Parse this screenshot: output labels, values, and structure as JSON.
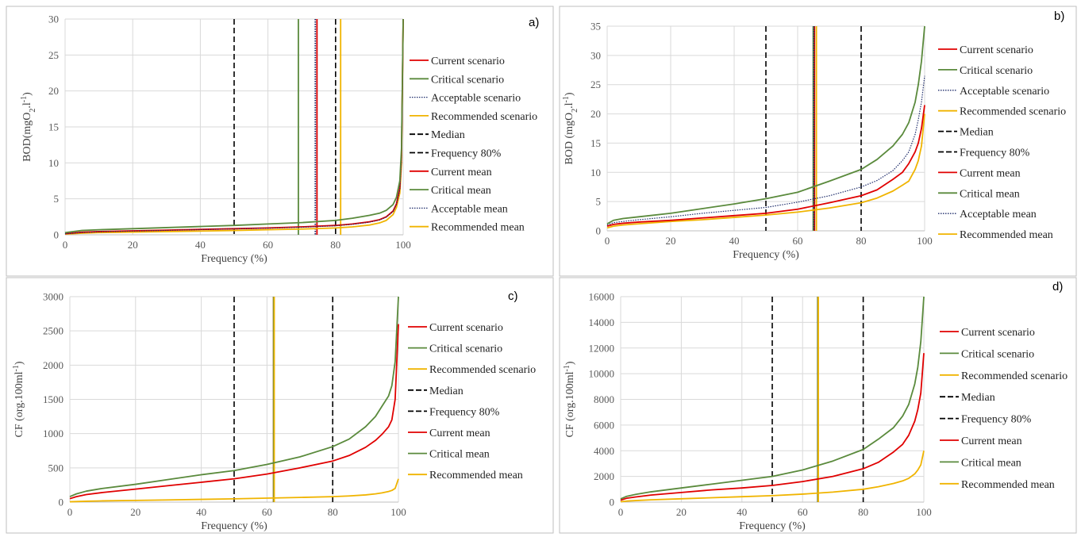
{
  "colors": {
    "current": "#e00000",
    "critical": "#5a8a3c",
    "acceptable": "#1f2d6b",
    "recommended": "#f0b400",
    "reference": "#000000",
    "grid": "#d9d9d9",
    "panel_border": "#bfbfbf"
  },
  "chart_data": [
    {
      "id": "a",
      "panel_label": "a)",
      "type": "line",
      "ylabel_main": "BOD(mgO",
      "ylabel_sub": "2",
      "ylabel_mid": ".l",
      "ylabel_sup": "-1",
      "ylabel_end": ")",
      "xlabel": "Frequency (%)",
      "xlim": [
        0,
        100
      ],
      "ylim": [
        0,
        30
      ],
      "xticks": [
        "0",
        "20",
        "40",
        "60",
        "80",
        "100"
      ],
      "yticks": [
        "0",
        "5",
        "10",
        "15",
        "20",
        "25",
        "30"
      ],
      "x": [
        0,
        5,
        10,
        20,
        30,
        40,
        50,
        60,
        70,
        80,
        85,
        90,
        93,
        95,
        97,
        98,
        99,
        99.5,
        100
      ],
      "series": [
        {
          "name": "Current scenario",
          "kind": "current",
          "style": "solid",
          "values": [
            0.15,
            0.35,
            0.45,
            0.55,
            0.65,
            0.75,
            0.85,
            0.95,
            1.1,
            1.3,
            1.5,
            1.8,
            2.1,
            2.5,
            3.3,
            4.3,
            6.5,
            11,
            30
          ]
        },
        {
          "name": "Critical scenario",
          "kind": "critical",
          "style": "solid",
          "values": [
            0.3,
            0.6,
            0.7,
            0.85,
            1.0,
            1.15,
            1.3,
            1.5,
            1.7,
            2.0,
            2.3,
            2.7,
            3.0,
            3.4,
            4.2,
            5.2,
            7.5,
            12,
            30
          ]
        },
        {
          "name": "Acceptable scenario",
          "kind": "acceptable",
          "style": "dotted",
          "values": [
            0.15,
            0.32,
            0.42,
            0.52,
            0.62,
            0.72,
            0.82,
            0.92,
            1.05,
            1.25,
            1.45,
            1.75,
            2.05,
            2.45,
            3.2,
            4.2,
            6.3,
            10.5,
            30
          ]
        },
        {
          "name": "Recommended scenario",
          "kind": "recommended",
          "style": "solid",
          "values": [
            0.1,
            0.22,
            0.3,
            0.38,
            0.45,
            0.52,
            0.6,
            0.7,
            0.8,
            0.95,
            1.1,
            1.35,
            1.65,
            2.0,
            2.8,
            3.8,
            5.8,
            10,
            30
          ]
        },
        {
          "name": "Median",
          "kind": "reference",
          "style": "dashed",
          "vline": 50
        },
        {
          "name": "Frequency 80%",
          "kind": "reference",
          "style": "dashed",
          "vline": 80
        },
        {
          "name": "Current mean",
          "kind": "current",
          "style": "solid",
          "vline": 74.5
        },
        {
          "name": "Critical mean",
          "kind": "critical",
          "style": "solid",
          "vline": 69
        },
        {
          "name": "Acceptable mean",
          "kind": "acceptable",
          "style": "dotted",
          "vline": 74
        },
        {
          "name": "Recommended mean",
          "kind": "recommended",
          "style": "solid",
          "vline": 81.5
        }
      ]
    },
    {
      "id": "b",
      "panel_label": "b)",
      "type": "line",
      "ylabel_main": "BOD (mgO",
      "ylabel_sub": "2",
      "ylabel_mid": ".l",
      "ylabel_sup": "-1",
      "ylabel_end": ")",
      "xlabel": "Frequency (%)",
      "xlim": [
        0,
        100
      ],
      "ylim": [
        0,
        35
      ],
      "xticks": [
        "0",
        "20",
        "40",
        "60",
        "80",
        "100"
      ],
      "yticks": [
        "0",
        "5",
        "10",
        "15",
        "20",
        "25",
        "30",
        "35"
      ],
      "x": [
        0,
        2,
        5,
        10,
        20,
        30,
        40,
        50,
        60,
        70,
        80,
        85,
        90,
        93,
        95,
        97,
        98,
        99,
        100
      ],
      "series": [
        {
          "name": "Current scenario",
          "kind": "current",
          "style": "solid",
          "values": [
            0.8,
            1.1,
            1.3,
            1.5,
            1.8,
            2.2,
            2.6,
            3.0,
            3.7,
            4.8,
            6.0,
            7.0,
            8.8,
            10.0,
            11.5,
            13.5,
            15.0,
            17.5,
            21.5
          ]
        },
        {
          "name": "Critical scenario",
          "kind": "critical",
          "style": "solid",
          "values": [
            1.2,
            1.8,
            2.1,
            2.4,
            3.0,
            3.8,
            4.6,
            5.5,
            6.6,
            8.5,
            10.5,
            12.2,
            14.5,
            16.5,
            18.5,
            22.0,
            25.0,
            29.0,
            35.0
          ]
        },
        {
          "name": "Acceptable scenario",
          "kind": "acceptable",
          "style": "dotted",
          "values": [
            1.0,
            1.4,
            1.6,
            1.9,
            2.4,
            3.0,
            3.5,
            4.0,
            4.9,
            6.0,
            7.5,
            8.6,
            10.3,
            12.0,
            13.5,
            16.5,
            19.0,
            22.0,
            26.5
          ]
        },
        {
          "name": "Recommended scenario",
          "kind": "recommended",
          "style": "solid",
          "values": [
            0.5,
            0.8,
            1.0,
            1.2,
            1.6,
            1.9,
            2.3,
            2.7,
            3.2,
            3.9,
            4.8,
            5.6,
            6.8,
            7.8,
            8.5,
            10.5,
            12.0,
            14.5,
            20.0
          ]
        },
        {
          "name": "Median",
          "kind": "reference",
          "style": "dashed",
          "vline": 50
        },
        {
          "name": "Frequency 80%",
          "kind": "reference",
          "style": "dashed",
          "vline": 80
        },
        {
          "name": "Current mean",
          "kind": "current",
          "style": "solid",
          "vline": 65.3
        },
        {
          "name": "Critical mean",
          "kind": "critical",
          "style": "solid",
          "vline": 64.9
        },
        {
          "name": "Acceptable mean",
          "kind": "acceptable",
          "style": "dotted",
          "vline": 65.1
        },
        {
          "name": "Recommended mean",
          "kind": "recommended",
          "style": "solid",
          "vline": 65.9
        }
      ]
    },
    {
      "id": "c",
      "panel_label": "c)",
      "type": "line",
      "ylabel_main": "CF (org.100ml",
      "ylabel_sub": "",
      "ylabel_mid": "",
      "ylabel_sup": "-1",
      "ylabel_end": ")",
      "xlabel": "Frequency (%)",
      "xlim": [
        0,
        100
      ],
      "ylim": [
        0,
        3000
      ],
      "xticks": [
        "0",
        "20",
        "40",
        "60",
        "80",
        "100"
      ],
      "yticks": [
        "0",
        "500",
        "1000",
        "1500",
        "2000",
        "2500",
        "3000"
      ],
      "x": [
        0,
        2,
        5,
        10,
        20,
        30,
        40,
        50,
        60,
        70,
        80,
        85,
        90,
        93,
        95,
        97,
        98,
        99,
        100
      ],
      "series": [
        {
          "name": "Current scenario",
          "kind": "current",
          "style": "solid",
          "values": [
            50,
            80,
            110,
            140,
            190,
            240,
            290,
            340,
            410,
            500,
            600,
            680,
            800,
            900,
            990,
            1100,
            1200,
            1500,
            2600
          ]
        },
        {
          "name": "Critical scenario",
          "kind": "critical",
          "style": "solid",
          "values": [
            80,
            120,
            160,
            200,
            260,
            330,
            400,
            460,
            550,
            660,
            810,
            920,
            1100,
            1250,
            1400,
            1550,
            1700,
            2050,
            3000
          ]
        },
        {
          "name": "Recommended scenario",
          "kind": "recommended",
          "style": "solid",
          "values": [
            5,
            8,
            12,
            18,
            25,
            32,
            40,
            48,
            58,
            68,
            80,
            90,
            105,
            120,
            135,
            155,
            170,
            200,
            340
          ]
        },
        {
          "name": "Median",
          "kind": "reference",
          "style": "dashed",
          "vline": 50
        },
        {
          "name": "Frequency 80%",
          "kind": "reference",
          "style": "dashed",
          "vline": 80
        },
        {
          "name": "Current mean",
          "kind": "current",
          "style": "solid",
          "vline": 62
        },
        {
          "name": "Critical mean",
          "kind": "critical",
          "style": "solid",
          "vline": 62
        },
        {
          "name": "Recommended mean",
          "kind": "recommended",
          "style": "solid",
          "vline": 62.2
        }
      ]
    },
    {
      "id": "d",
      "panel_label": "d)",
      "type": "line",
      "ylabel_main": "CF (org.100ml",
      "ylabel_sub": "",
      "ylabel_mid": "",
      "ylabel_sup": "-1",
      "ylabel_end": ")",
      "xlabel": "Frequency (%)",
      "xlim": [
        0,
        100
      ],
      "ylim": [
        0,
        16000
      ],
      "xticks": [
        "0",
        "20",
        "40",
        "60",
        "80",
        "100"
      ],
      "yticks": [
        "0",
        "2000",
        "4000",
        "6000",
        "8000",
        "10000",
        "12000",
        "14000",
        "16000"
      ],
      "x": [
        0,
        2,
        5,
        10,
        20,
        30,
        40,
        50,
        60,
        70,
        80,
        85,
        90,
        93,
        95,
        97,
        98,
        99,
        100
      ],
      "series": [
        {
          "name": "Current scenario",
          "kind": "current",
          "style": "solid",
          "values": [
            150,
            300,
            400,
            550,
            750,
            950,
            1100,
            1300,
            1600,
            2000,
            2600,
            3100,
            3900,
            4500,
            5200,
            6300,
            7200,
            8500,
            11600
          ]
        },
        {
          "name": "Critical scenario",
          "kind": "critical",
          "style": "solid",
          "values": [
            250,
            450,
            600,
            800,
            1100,
            1400,
            1700,
            2000,
            2500,
            3200,
            4100,
            4900,
            5800,
            6700,
            7600,
            9200,
            10500,
            12500,
            16000
          ]
        },
        {
          "name": "Recommended scenario",
          "kind": "recommended",
          "style": "solid",
          "values": [
            30,
            80,
            120,
            180,
            260,
            340,
            420,
            500,
            620,
            780,
            1000,
            1200,
            1450,
            1650,
            1850,
            2200,
            2500,
            2900,
            4000
          ]
        },
        {
          "name": "Median",
          "kind": "reference",
          "style": "dashed",
          "vline": 50
        },
        {
          "name": "Frequency 80%",
          "kind": "reference",
          "style": "dashed",
          "vline": 80
        },
        {
          "name": "Current mean",
          "kind": "current",
          "style": "solid",
          "vline": 65
        },
        {
          "name": "Critical mean",
          "kind": "critical",
          "style": "solid",
          "vline": 65
        },
        {
          "name": "Recommended mean",
          "kind": "recommended",
          "style": "solid",
          "vline": 65.2
        }
      ]
    }
  ]
}
